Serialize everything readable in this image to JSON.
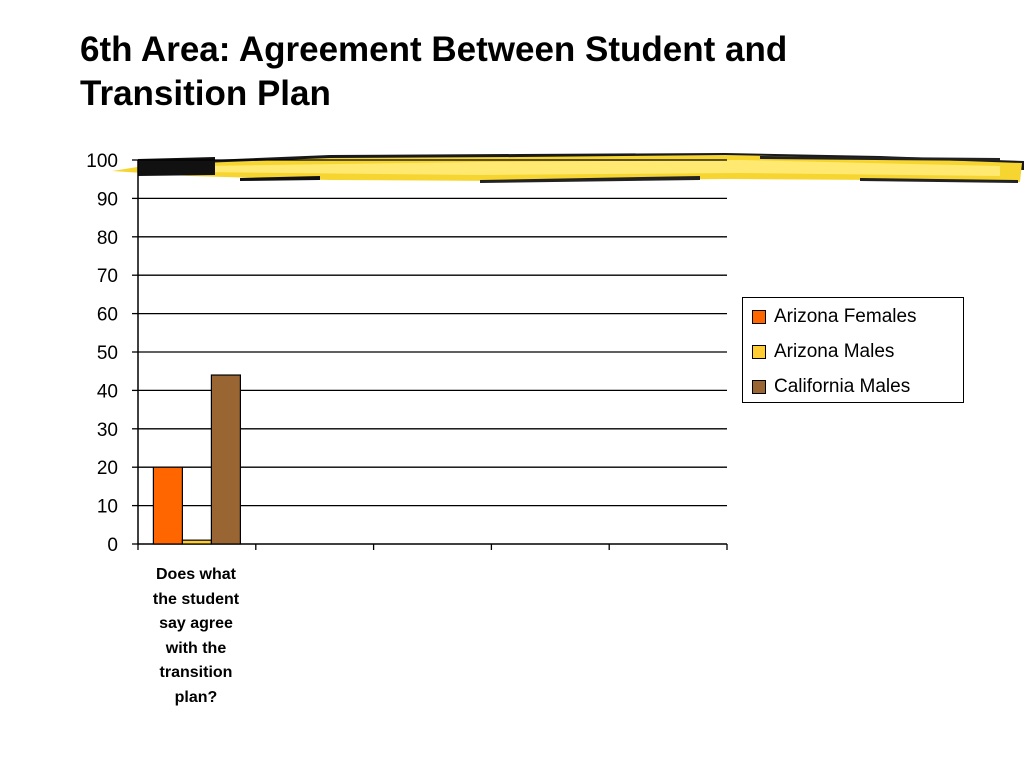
{
  "slide": {
    "title_line1": "6th Area: Agreement Between Student and",
    "title_line2": "Transition Plan"
  },
  "chart_data": {
    "type": "bar",
    "title": "",
    "xlabel": "",
    "ylabel": "",
    "ylim": [
      0,
      100
    ],
    "yticks": [
      0,
      10,
      20,
      30,
      40,
      50,
      60,
      70,
      80,
      90,
      100
    ],
    "grid": true,
    "legend_position": "right",
    "categories": [
      "Does what the student say agree with the transition plan?"
    ],
    "category_label_lines": "Does what\nthe student\nsay agree\nwith the\ntransition\nplan?",
    "series": [
      {
        "name": "Arizona Females",
        "color": "#ff6600",
        "values": [
          20
        ]
      },
      {
        "name": "Arizona Males",
        "color": "#ffcc33",
        "values": [
          1
        ]
      },
      {
        "name": "California Males",
        "color": "#996633",
        "values": [
          44
        ]
      }
    ]
  },
  "decoration": {
    "accent_colors": [
      "#ffdd33",
      "#000000"
    ],
    "description_icon": "brush-stroke-bar"
  }
}
